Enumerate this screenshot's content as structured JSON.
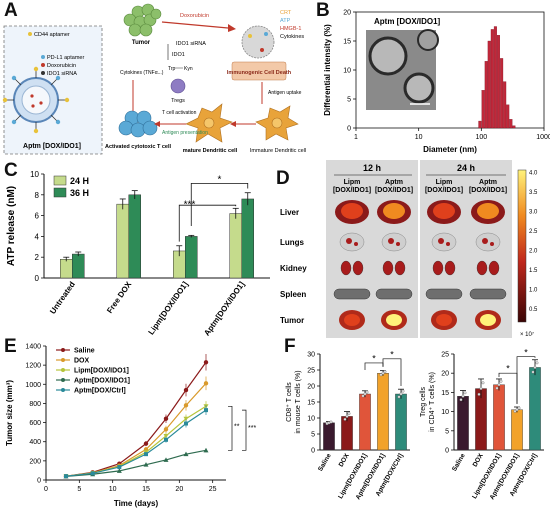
{
  "panel_letters": [
    "A",
    "B",
    "C",
    "D",
    "E",
    "F"
  ],
  "panelA": {
    "box": {
      "label": "Aptm [DOX/IDO1]",
      "legend": [
        "CD44 aptamer",
        "PD-L1 aptamer",
        "Doxorubicin",
        "IDO1 siRNA"
      ]
    },
    "nodes": {
      "tumor": "Tumor",
      "icd": "Immunogenic Cell Death",
      "immature_dc": "Immature Dendritic cell",
      "mature_dc": "mature Dendritic cell",
      "activated_t": "Activated cytotoxic T cell",
      "tregs": "Tregs",
      "ido1": "IDO1",
      "trp_kyn": [
        "Trp",
        "Kyn"
      ],
      "t_cell_activation": "T cell activation",
      "antigen_presentation": "Antigen presentation",
      "antigen_uptake": "Antigen uptake",
      "cytokines": "Cytokines (TNFα...)",
      "doxorubicin": "Doxorubicin",
      "ido1_sirna": "IDO1 siRNA"
    },
    "icd_legend": [
      "CRT",
      "ATP",
      "HMGB-1",
      "Cytokines"
    ],
    "colors": {
      "tumor": "#8cbf6a",
      "dc": "#e8a33a",
      "tcell": "#5aa9d6",
      "treg": "#8e7cc3",
      "arrow": "#c0392b"
    }
  },
  "chart_data": [
    {
      "panel": "B",
      "type": "bar",
      "title": "Aptm [DOX/IDO1]",
      "xlabel": "Diameter (nm)",
      "ylabel": "Differential intensity (%)",
      "x_scale": "log",
      "xlim": [
        1,
        1000
      ],
      "ylim": [
        0,
        20
      ],
      "x_ticks": [
        "1",
        "10",
        "100",
        "1000"
      ],
      "y_ticks": [
        "0",
        "5",
        "10",
        "15",
        "20"
      ],
      "x": [
        95,
        107,
        120,
        134,
        150,
        168,
        188,
        211,
        236,
        264,
        296,
        331
      ],
      "values": [
        1.2,
        6.5,
        11.5,
        15.0,
        17.0,
        17.5,
        16.0,
        12.0,
        8.0,
        4.0,
        1.5,
        0.4
      ],
      "bar_color": "#c0283a",
      "inset": "TEM image"
    },
    {
      "panel": "C",
      "type": "bar",
      "ylabel": "ATP release (nM)",
      "ylim": [
        0,
        10
      ],
      "y_ticks": [
        "0",
        "2",
        "4",
        "6",
        "8",
        "10"
      ],
      "categories": [
        "Untreated",
        "Free DOX",
        "Lipm[DOX/IDO1]",
        "Aptm[DOX/IDO1]"
      ],
      "series": [
        {
          "name": "24 H",
          "values": [
            1.8,
            7.1,
            2.6,
            6.2
          ],
          "errors": [
            0.2,
            0.5,
            0.5,
            0.5
          ],
          "color": "#c5db8c"
        },
        {
          "name": "36 H",
          "values": [
            2.3,
            8.0,
            4.0,
            7.6
          ],
          "errors": [
            0.2,
            0.4,
            0.1,
            0.6
          ],
          "color": "#2e8b57"
        }
      ],
      "significance": [
        "*",
        "***"
      ]
    },
    {
      "panel": "E",
      "type": "line",
      "xlabel": "Time (days)",
      "ylabel": "Tumor size (mm³)",
      "xlim": [
        0,
        27
      ],
      "ylim": [
        0,
        1400
      ],
      "x_ticks": [
        "0",
        "5",
        "10",
        "15",
        "20",
        "25"
      ],
      "y_ticks": [
        "0",
        "200",
        "400",
        "600",
        "800",
        "1000",
        "1200",
        "1400"
      ],
      "x": [
        3,
        7,
        11,
        15,
        18,
        21,
        24
      ],
      "series": [
        {
          "name": "Saline",
          "values": [
            40,
            80,
            170,
            380,
            640,
            940,
            1230
          ],
          "color": "#8b1a1a",
          "marker": "circle"
        },
        {
          "name": "DOX",
          "values": [
            40,
            75,
            150,
            320,
            530,
            780,
            1010
          ],
          "color": "#d99a2b",
          "marker": "circle"
        },
        {
          "name": "Lipm[DOX/IDO1]",
          "values": [
            40,
            72,
            140,
            290,
            460,
            640,
            770
          ],
          "color": "#b6c43a",
          "marker": "triangle-down"
        },
        {
          "name": "Aptm[DOX/IDO1]",
          "values": [
            38,
            60,
            95,
            160,
            210,
            270,
            310
          ],
          "color": "#2e6b4f",
          "marker": "triangle-up"
        },
        {
          "name": "Aptm[DOX/Ctrl]",
          "values": [
            40,
            70,
            135,
            270,
            420,
            590,
            730
          ],
          "color": "#2a8a9a",
          "marker": "square"
        }
      ],
      "significance": [
        "**",
        "***"
      ]
    },
    {
      "panel": "F-left",
      "type": "bar",
      "ylabel": "CD8⁺ T cells in mouse T cells (%)",
      "ylim": [
        0,
        30
      ],
      "y_ticks": [
        "0",
        "5",
        "10",
        "15",
        "20",
        "25",
        "30"
      ],
      "categories": [
        "Saline",
        "DOX",
        "Lipm[DOX/IDO1]",
        "Aptm[DOX/IDO1]",
        "Aptm[DOX/Ctrl]"
      ],
      "values": [
        8.5,
        10.5,
        17.5,
        24.0,
        17.5
      ],
      "errors": [
        0.4,
        1.5,
        1.0,
        0.8,
        1.5
      ],
      "colors": [
        "#3a1a2e",
        "#8b1a1a",
        "#e0553a",
        "#f2a22a",
        "#2e8b7a"
      ],
      "significance": [
        "*",
        "*"
      ]
    },
    {
      "panel": "F-right",
      "type": "bar",
      "ylabel": "Treg cells in CD4⁺ T cells (%)",
      "ylim": [
        0,
        25
      ],
      "y_ticks": [
        "0",
        "5",
        "10",
        "15",
        "20",
        "25"
      ],
      "categories": [
        "Saline",
        "DOX",
        "Lipm[DOX/IDO1]",
        "Aptm[DOX/IDO1]",
        "Aptm[DOX/Ctrl]"
      ],
      "values": [
        14.0,
        16.0,
        17.0,
        10.5,
        21.5
      ],
      "errors": [
        1.5,
        2.5,
        1.5,
        0.7,
        2.0
      ],
      "colors": [
        "#3a1a2e",
        "#8b1a1a",
        "#e0553a",
        "#f2a22a",
        "#2e8b7a"
      ],
      "significance": [
        "*",
        "*"
      ]
    },
    {
      "panel": "D",
      "type": "heatmap",
      "timepoints": [
        "12 h",
        "24 h"
      ],
      "groups": [
        "Lipm [DOX/IDO1]",
        "Aptm [DOX/IDO1]"
      ],
      "organs": [
        "Liver",
        "Lungs",
        "Kidney",
        "Spleen",
        "Tumor"
      ],
      "intensity": [
        [
          0.55,
          0.65,
          0.6,
          0.7
        ],
        [
          0.25,
          0.3,
          0.25,
          0.3
        ],
        [
          0.35,
          0.3,
          0.35,
          0.4
        ],
        [
          0.05,
          0.05,
          0.05,
          0.05
        ],
        [
          0.55,
          0.85,
          0.6,
          0.9
        ]
      ],
      "colorbar_ticks": [
        "4.0",
        "3.5",
        "3.0",
        "2.5",
        "2.0",
        "1.5",
        "1.0",
        "0.5"
      ],
      "colorbar_unit": "× 10⁷"
    }
  ]
}
